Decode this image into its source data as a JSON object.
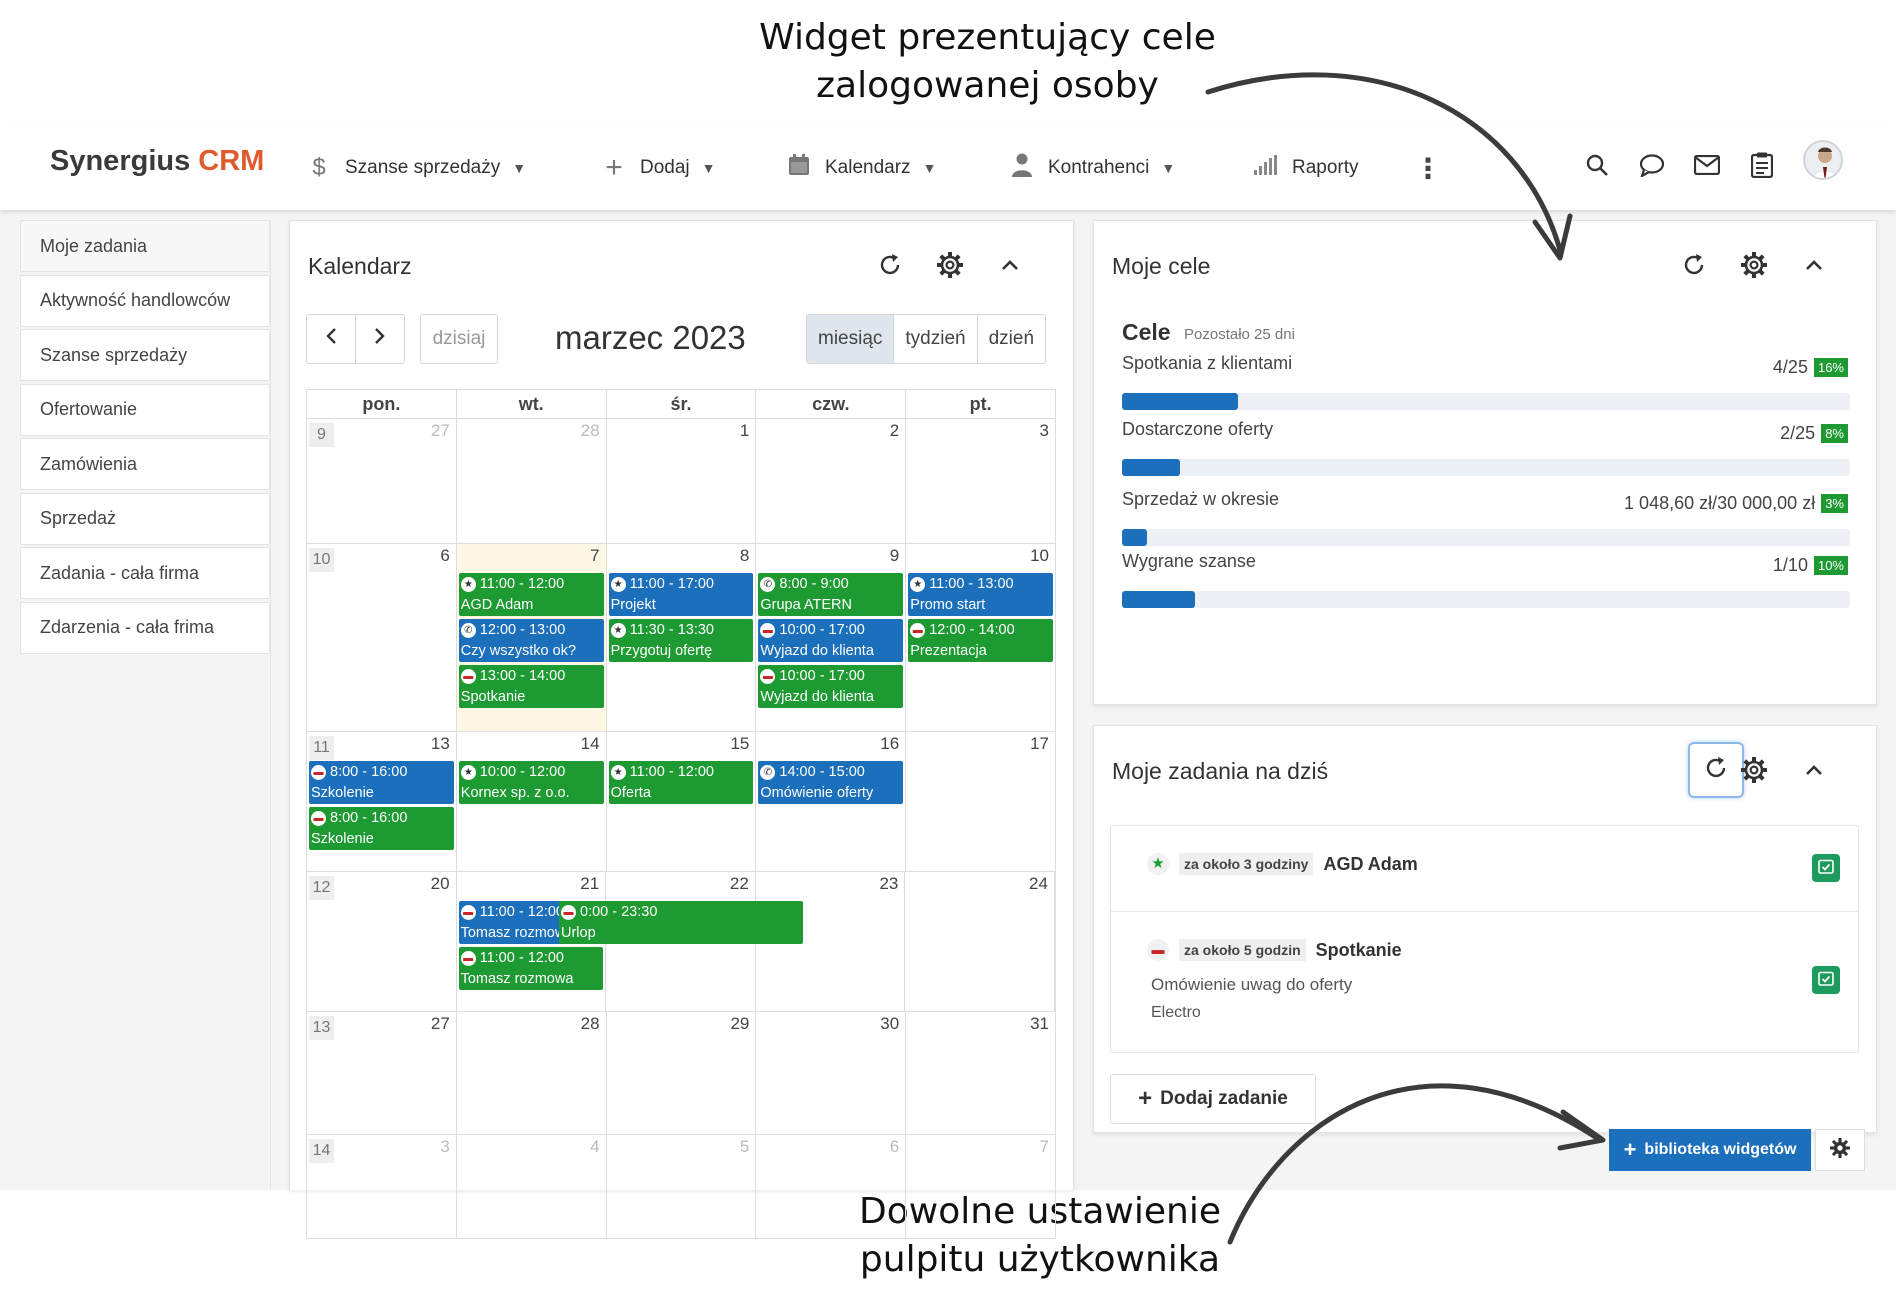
{
  "annotations": {
    "top_line1": "Widget prezentujący cele",
    "top_line2": "zalogowanej osoby",
    "bottom_line1": "Dowolne ustawienie",
    "bottom_line2": "pulpitu użytkownika"
  },
  "header": {
    "logo_main": "Synergius",
    "logo_crm": "CRM",
    "nav": [
      {
        "label": "Szanse sprzedaży",
        "icon": "dollar-icon"
      },
      {
        "label": "Dodaj",
        "icon": "plus-icon"
      },
      {
        "label": "Kalendarz",
        "icon": "calendar-icon"
      },
      {
        "label": "Kontrahenci",
        "icon": "person-icon"
      },
      {
        "label": "Raporty",
        "icon": "signal-bars-icon"
      }
    ]
  },
  "sidebar": {
    "items": [
      {
        "label": "Moje zadania"
      },
      {
        "label": "Aktywność handlowców"
      },
      {
        "label": "Szanse sprzedaży"
      },
      {
        "label": "Ofertowanie"
      },
      {
        "label": "Zamówienia"
      },
      {
        "label": "Sprzedaż"
      },
      {
        "label": "Zadania - cała firma"
      },
      {
        "label": "Zdarzenia - cała frima"
      }
    ]
  },
  "calendar": {
    "title": "Kalendarz",
    "today_label": "dzisiaj",
    "month": "marzec 2023",
    "views": [
      "miesiąc",
      "tydzień",
      "dzień"
    ],
    "active_view": "miesiąc",
    "dow": [
      "pon.",
      "wt.",
      "śr.",
      "czw.",
      "pt."
    ],
    "weeks": [
      {
        "wk": "9",
        "days": [
          {
            "n": "27",
            "other": true,
            "events": []
          },
          {
            "n": "28",
            "other": true,
            "events": []
          },
          {
            "n": "1",
            "events": []
          },
          {
            "n": "2",
            "events": []
          },
          {
            "n": "3",
            "events": []
          }
        ]
      },
      {
        "wk": "10",
        "days": [
          {
            "n": "6",
            "events": []
          },
          {
            "n": "7",
            "today": true,
            "events": [
              {
                "time": "11:00 - 12:00",
                "title": "AGD Adam",
                "color": "green",
                "icon": "star"
              },
              {
                "time": "12:00 - 13:00",
                "title": "Czy wszystko ok?",
                "color": "blue",
                "icon": "phone"
              },
              {
                "time": "13:00 - 14:00",
                "title": "Spotkanie",
                "color": "green",
                "icon": "bag"
              }
            ]
          },
          {
            "n": "8",
            "events": [
              {
                "time": "11:00 - 17:00",
                "title": "Projekt",
                "color": "blue",
                "icon": "star"
              },
              {
                "time": "11:30 - 13:30",
                "title": "Przygotuj ofertę",
                "color": "green",
                "icon": "star"
              }
            ]
          },
          {
            "n": "9",
            "events": [
              {
                "time": "8:00 - 9:00",
                "title": "Grupa ATERN",
                "color": "green",
                "icon": "phone"
              },
              {
                "time": "10:00 - 17:00",
                "title": "Wyjazd do klienta",
                "color": "blue",
                "icon": "bag"
              },
              {
                "time": "10:00 - 17:00",
                "title": "Wyjazd do klienta",
                "color": "green",
                "icon": "bag"
              }
            ]
          },
          {
            "n": "10",
            "events": [
              {
                "time": "11:00 - 13:00",
                "title": "Promo start",
                "color": "blue",
                "icon": "star"
              },
              {
                "time": "12:00 - 14:00",
                "title": "Prezentacja",
                "color": "green",
                "icon": "bag"
              }
            ]
          }
        ]
      },
      {
        "wk": "11",
        "days": [
          {
            "n": "13",
            "events": [
              {
                "time": "8:00 - 16:00",
                "title": "Szkolenie",
                "color": "blue",
                "icon": "bag"
              },
              {
                "time": "8:00 - 16:00",
                "title": "Szkolenie",
                "color": "green",
                "icon": "bag"
              }
            ]
          },
          {
            "n": "14",
            "events": [
              {
                "time": "10:00 - 12:00",
                "title": "Kornex sp. z o.o.",
                "color": "green",
                "icon": "star"
              }
            ]
          },
          {
            "n": "15",
            "events": [
              {
                "time": "11:00 - 12:00",
                "title": "Oferta",
                "color": "green",
                "icon": "star"
              }
            ]
          },
          {
            "n": "16",
            "events": [
              {
                "time": "14:00 - 15:00",
                "title": "Omówienie oferty",
                "color": "blue",
                "icon": "phone"
              }
            ]
          },
          {
            "n": "17",
            "events": []
          }
        ]
      },
      {
        "wk": "12",
        "days": [
          {
            "n": "20",
            "events": []
          },
          {
            "n": "21",
            "events": [
              {
                "time": "11:00 - 12:00",
                "title": "Tomasz rozmowa",
                "color": "blue",
                "icon": "bag"
              },
              {
                "time": "11:00 - 12:00",
                "title": "Tomasz rozmowa",
                "color": "green",
                "icon": "bag"
              }
            ]
          },
          {
            "n": "22",
            "events": []
          },
          {
            "n": "23",
            "events": []
          },
          {
            "n": "24",
            "events": []
          }
        ]
      },
      {
        "wk": "13",
        "days": [
          {
            "n": "27",
            "events": []
          },
          {
            "n": "28",
            "events": []
          },
          {
            "n": "29",
            "events": []
          },
          {
            "n": "30",
            "events": []
          },
          {
            "n": "31",
            "events": []
          }
        ]
      },
      {
        "wk": "14",
        "days": [
          {
            "n": "3",
            "other": true,
            "events": []
          },
          {
            "n": "4",
            "other": true,
            "events": []
          },
          {
            "n": "5",
            "other": true,
            "events": []
          },
          {
            "n": "6",
            "other": true,
            "events": []
          },
          {
            "n": "7",
            "other": true,
            "events": []
          }
        ]
      }
    ],
    "span_event": {
      "time": "0:00 - 23:30",
      "title": "Urlop",
      "color": "green",
      "icon": "bag"
    }
  },
  "goals": {
    "title": "Moje cele",
    "heading": "Cele",
    "remaining": "Pozostało 25 dni",
    "items": [
      {
        "label": "Spotkania z klientami",
        "value": "4/25",
        "pct": "16%",
        "fraction": 0.16
      },
      {
        "label": "Dostarczone oferty",
        "value": "2/25",
        "pct": "8%",
        "fraction": 0.08
      },
      {
        "label": "Sprzedaż w okresie",
        "value": "1 048,60 zł/30 000,00 zł",
        "pct": "3%",
        "fraction": 0.035
      },
      {
        "label": "Wygrane szanse",
        "value": "1/10",
        "pct": "10%",
        "fraction": 0.1
      }
    ]
  },
  "tasks": {
    "title": "Moje zadania na dziś",
    "items": [
      {
        "badge": "za około 3 godziny",
        "title": "AGD Adam",
        "icon": "star-icon"
      },
      {
        "badge": "za około 5 godzin",
        "title": "Spotkanie",
        "icon": "briefcase-icon",
        "line1": "Omówienie uwag do oferty",
        "line2": "Electro"
      }
    ],
    "add_label": "Dodaj zadanie"
  },
  "footer": {
    "library_label": "biblioteka widgetów"
  },
  "colors": {
    "accent": "#1b6fbb",
    "green": "#1e9a33",
    "brand_orange": "#e05a2c"
  }
}
